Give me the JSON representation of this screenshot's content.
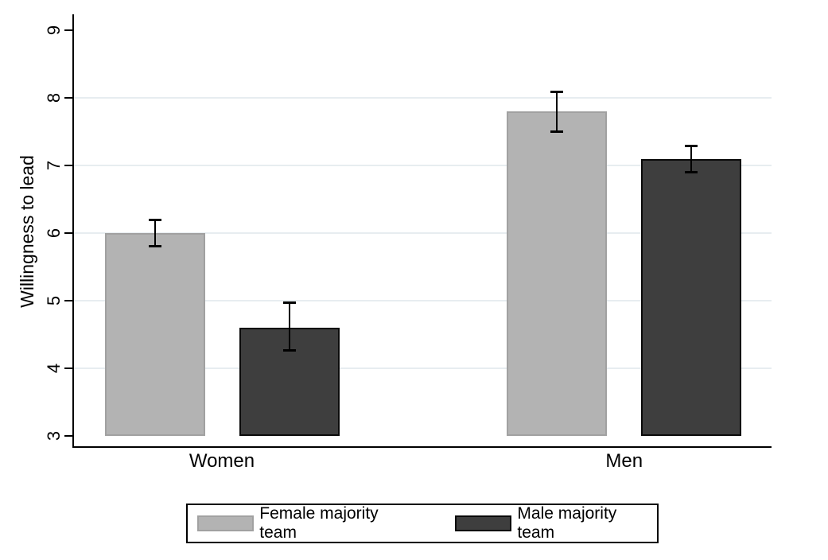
{
  "chart_data": {
    "type": "bar",
    "title": "",
    "ylabel": "Willingness to lead",
    "categories": [
      "Women",
      "Men"
    ],
    "series": [
      {
        "name": "Female majority team",
        "fill": "#b3b3b3",
        "border": "#a1a1a1",
        "values": [
          6.0,
          7.8
        ],
        "ci": [
          [
            5.8,
            6.2
          ],
          [
            7.5,
            8.1
          ]
        ]
      },
      {
        "name": "Male majority team",
        "fill": "#3e3e3e",
        "border": "#0a0a0a",
        "values": [
          4.6,
          7.1
        ],
        "ci": [
          [
            4.26,
            4.98
          ],
          [
            6.9,
            7.3
          ]
        ]
      }
    ],
    "ylim": [
      3,
      9
    ],
    "yticks": [
      3,
      4,
      5,
      6,
      7,
      8,
      9
    ],
    "gridline_values": [
      4,
      5,
      6,
      7,
      8
    ],
    "grid_color": "#e7edf0",
    "axis_color": "#000000",
    "legend_position": "bottom",
    "grid": true
  }
}
